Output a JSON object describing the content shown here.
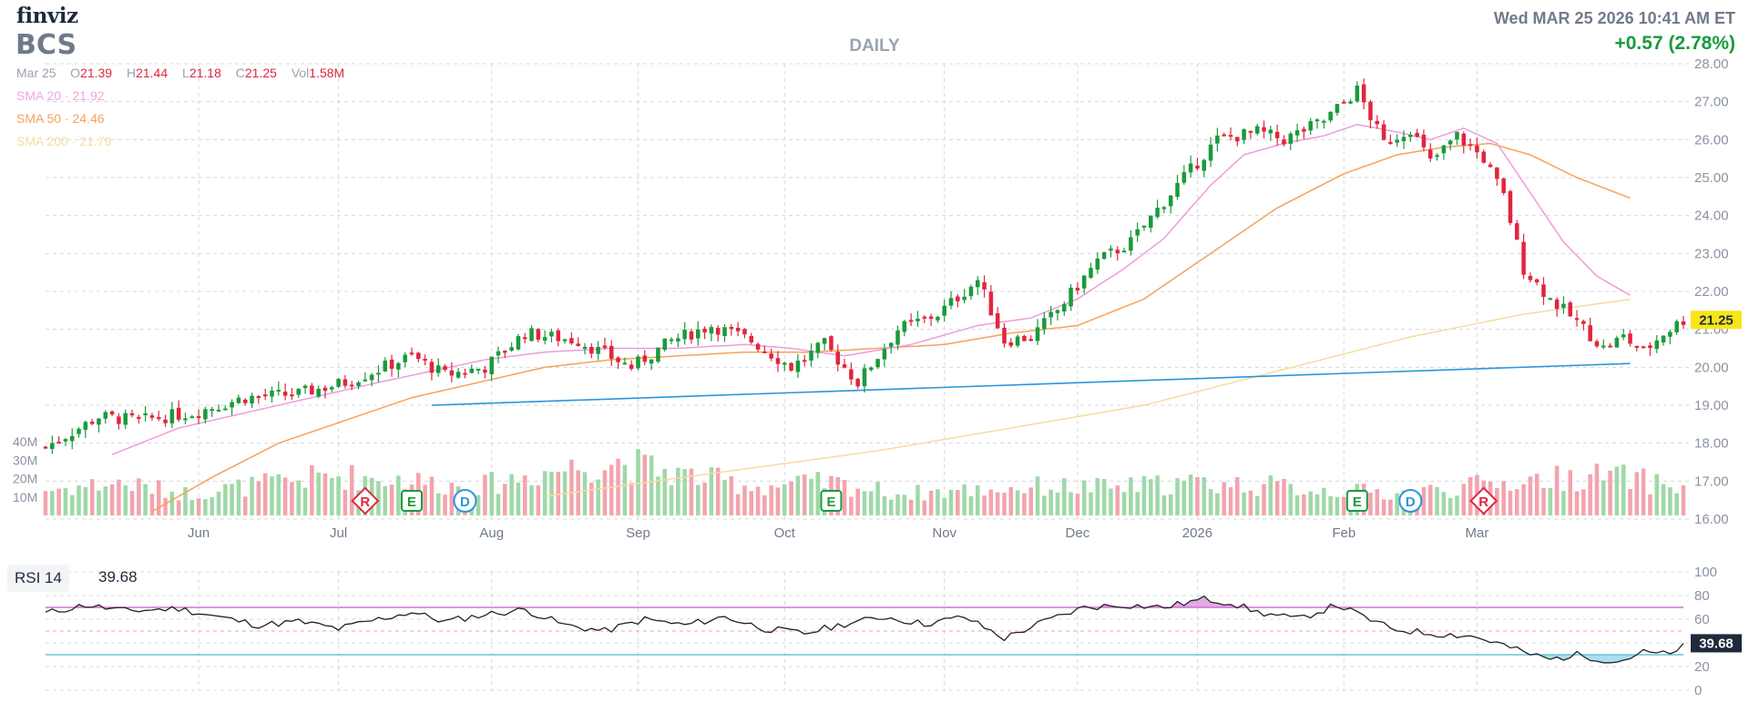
{
  "header": {
    "logo": "finviz",
    "ticker": "BCS",
    "datetime": "Wed MAR 25 2026 10:41 AM ET",
    "change": "+0.57 (2.78%)",
    "period": "DAILY",
    "ohlc": {
      "date": "Mar 25",
      "o_label": "O",
      "o": "21.39",
      "h_label": "H",
      "h": "21.44",
      "l_label": "L",
      "l": "21.18",
      "c_label": "C",
      "c": "21.25",
      "vol_label": "Vol",
      "vol": "1.58M"
    },
    "ma20": {
      "label": "SMA 20",
      "value": "21.92"
    },
    "ma50": {
      "label": "SMA 50",
      "value": "24.46"
    },
    "ma200": {
      "label": "SMA 200",
      "value": "21.79"
    }
  },
  "rsi": {
    "label": "RSI 14",
    "value": "39.68"
  },
  "colors": {
    "up": "#1a9a3c",
    "down": "#e0263e",
    "vol_up": "#9fd8a8",
    "vol_down": "#f2a4ae",
    "ma20": "#ef9bdc",
    "ma50": "#f5a25a",
    "ma200": "#f5dca0",
    "trend": "#2b95dc",
    "rsi_line": "#222222",
    "rsi_upper": "#cc55cc",
    "rsi_lower": "#4fb8d8",
    "last_price_bg": "#f7e51a",
    "grid": "#d4d8de"
  },
  "chart_data": {
    "type": "candlestick",
    "title": "BCS",
    "subtitle": "DAILY",
    "price_axis": [
      16,
      17,
      18,
      19,
      20,
      21,
      22,
      23,
      24,
      25,
      26,
      27,
      28
    ],
    "price_axis_labels": [
      "16.00",
      "17.00",
      "18.00",
      "19.00",
      "20.00",
      "21.00",
      "22.00",
      "23.00",
      "24.00",
      "25.00",
      "26.00",
      "27.00",
      "28.00"
    ],
    "volume_axis_labels": [
      "10M",
      "20M",
      "30M",
      "40M"
    ],
    "volume_axis": [
      10,
      20,
      30,
      40
    ],
    "x_labels": [
      "Jun",
      "Jul",
      "Aug",
      "Sep",
      "Oct",
      "Nov",
      "Dec",
      "2026",
      "Feb",
      "Mar"
    ],
    "x_label_pos": [
      23,
      44,
      67,
      89,
      111,
      135,
      155,
      173,
      195,
      215
    ],
    "last_price": "21.25",
    "price_anchors": [
      [
        0,
        17.9
      ],
      [
        8,
        18.7
      ],
      [
        14,
        18.6
      ],
      [
        22,
        18.8
      ],
      [
        30,
        19.2
      ],
      [
        38,
        19.3
      ],
      [
        45,
        19.6
      ],
      [
        55,
        20.3
      ],
      [
        60,
        19.8
      ],
      [
        66,
        20.0
      ],
      [
        72,
        20.9
      ],
      [
        80,
        20.7
      ],
      [
        88,
        20.0
      ],
      [
        94,
        20.7
      ],
      [
        100,
        21.1
      ],
      [
        106,
        20.7
      ],
      [
        112,
        20.0
      ],
      [
        117,
        20.6
      ],
      [
        122,
        19.6
      ],
      [
        128,
        21.0
      ],
      [
        134,
        21.4
      ],
      [
        140,
        22.3
      ],
      [
        144,
        20.7
      ],
      [
        148,
        20.8
      ],
      [
        152,
        21.5
      ],
      [
        158,
        22.8
      ],
      [
        163,
        23.3
      ],
      [
        170,
        24.8
      ],
      [
        176,
        26.0
      ],
      [
        182,
        26.2
      ],
      [
        186,
        26.0
      ],
      [
        192,
        26.5
      ],
      [
        197,
        27.3
      ],
      [
        201,
        25.9
      ],
      [
        205,
        26.3
      ],
      [
        208,
        25.4
      ],
      [
        212,
        26.1
      ],
      [
        216,
        25.5
      ],
      [
        219,
        24.5
      ],
      [
        222,
        22.6
      ],
      [
        226,
        21.8
      ],
      [
        230,
        21.2
      ],
      [
        234,
        20.5
      ],
      [
        237,
        20.8
      ],
      [
        240,
        20.4
      ],
      [
        243,
        20.9
      ],
      [
        246,
        21.25
      ]
    ],
    "volume_levels": [
      0.35,
      0.45,
      0.3,
      0.42,
      0.55,
      0.5,
      0.38,
      0.6,
      0.75,
      0.55,
      0.4,
      0.45,
      0.3,
      0.35,
      0.4,
      0.38,
      0.45,
      0.42,
      0.35,
      0.3,
      0.4,
      0.5,
      0.55,
      0.38
    ],
    "sma20_anchors": [
      [
        10,
        17.7
      ],
      [
        20,
        18.4
      ],
      [
        30,
        18.8
      ],
      [
        40,
        19.2
      ],
      [
        50,
        19.6
      ],
      [
        58,
        19.9
      ],
      [
        66,
        20.2
      ],
      [
        75,
        20.4
      ],
      [
        85,
        20.5
      ],
      [
        95,
        20.5
      ],
      [
        105,
        20.6
      ],
      [
        112,
        20.5
      ],
      [
        120,
        20.3
      ],
      [
        130,
        20.6
      ],
      [
        140,
        21.1
      ],
      [
        148,
        21.3
      ],
      [
        155,
        21.8
      ],
      [
        162,
        22.6
      ],
      [
        168,
        23.4
      ],
      [
        175,
        24.8
      ],
      [
        180,
        25.6
      ],
      [
        186,
        25.9
      ],
      [
        192,
        26.1
      ],
      [
        197,
        26.4
      ],
      [
        203,
        26.2
      ],
      [
        208,
        26.0
      ],
      [
        213,
        26.3
      ],
      [
        218,
        25.9
      ],
      [
        223,
        24.6
      ],
      [
        228,
        23.3
      ],
      [
        233,
        22.4
      ],
      [
        238,
        21.9
      ]
    ],
    "sma50_anchors": [
      [
        16,
        16.2
      ],
      [
        25,
        17.1
      ],
      [
        35,
        18.0
      ],
      [
        45,
        18.6
      ],
      [
        55,
        19.2
      ],
      [
        65,
        19.6
      ],
      [
        75,
        20.0
      ],
      [
        85,
        20.2
      ],
      [
        95,
        20.3
      ],
      [
        105,
        20.4
      ],
      [
        115,
        20.4
      ],
      [
        125,
        20.5
      ],
      [
        135,
        20.6
      ],
      [
        145,
        20.9
      ],
      [
        155,
        21.1
      ],
      [
        165,
        21.8
      ],
      [
        175,
        23.0
      ],
      [
        185,
        24.2
      ],
      [
        195,
        25.1
      ],
      [
        203,
        25.6
      ],
      [
        210,
        25.8
      ],
      [
        217,
        25.9
      ],
      [
        223,
        25.6
      ],
      [
        230,
        25.0
      ],
      [
        238,
        24.46
      ]
    ],
    "sma200_anchors": [
      [
        75,
        16.6
      ],
      [
        100,
        17.2
      ],
      [
        125,
        17.8
      ],
      [
        145,
        18.4
      ],
      [
        165,
        19.0
      ],
      [
        185,
        19.9
      ],
      [
        205,
        20.8
      ],
      [
        222,
        21.4
      ],
      [
        238,
        21.79
      ]
    ],
    "trendline": {
      "from": [
        58,
        19.0
      ],
      "to": [
        238,
        20.1
      ]
    },
    "markers": [
      {
        "letter": "R",
        "shape": "diamond",
        "color": "#e0263e",
        "x": 48
      },
      {
        "letter": "E",
        "shape": "square",
        "color": "#1a9a3c",
        "x": 55
      },
      {
        "letter": "D",
        "shape": "circle",
        "color": "#2b95dc",
        "x": 63
      },
      {
        "letter": "E",
        "shape": "square",
        "color": "#1a9a3c",
        "x": 118
      },
      {
        "letter": "E",
        "shape": "square",
        "color": "#1a9a3c",
        "x": 197
      },
      {
        "letter": "D",
        "shape": "circle",
        "color": "#2b95dc",
        "x": 205
      },
      {
        "letter": "R",
        "shape": "diamond",
        "color": "#e0263e",
        "x": 216
      }
    ],
    "rsi": {
      "axis": [
        0,
        20,
        40,
        60,
        80,
        100
      ],
      "axis_labels": [
        "0",
        "20",
        "40",
        "60",
        "80",
        "100"
      ],
      "upper": 70,
      "lower": 30,
      "anchors": [
        [
          0,
          65
        ],
        [
          6,
          72
        ],
        [
          12,
          67
        ],
        [
          20,
          69
        ],
        [
          26,
          62
        ],
        [
          32,
          55
        ],
        [
          38,
          58
        ],
        [
          44,
          52
        ],
        [
          50,
          60
        ],
        [
          55,
          66
        ],
        [
          60,
          58
        ],
        [
          66,
          64
        ],
        [
          72,
          68
        ],
        [
          78,
          55
        ],
        [
          84,
          50
        ],
        [
          90,
          60
        ],
        [
          96,
          55
        ],
        [
          102,
          62
        ],
        [
          108,
          52
        ],
        [
          114,
          48
        ],
        [
          120,
          56
        ],
        [
          126,
          62
        ],
        [
          132,
          56
        ],
        [
          138,
          62
        ],
        [
          144,
          44
        ],
        [
          150,
          58
        ],
        [
          156,
          70
        ],
        [
          162,
          72
        ],
        [
          168,
          70
        ],
        [
          174,
          77
        ],
        [
          178,
          74
        ],
        [
          182,
          66
        ],
        [
          188,
          60
        ],
        [
          194,
          72
        ],
        [
          198,
          62
        ],
        [
          202,
          52
        ],
        [
          208,
          48
        ],
        [
          214,
          46
        ],
        [
          218,
          40
        ],
        [
          222,
          32
        ],
        [
          226,
          26
        ],
        [
          230,
          30
        ],
        [
          236,
          24
        ],
        [
          240,
          32
        ],
        [
          244,
          30
        ],
        [
          246,
          39.68
        ]
      ],
      "value": "39.68"
    }
  }
}
